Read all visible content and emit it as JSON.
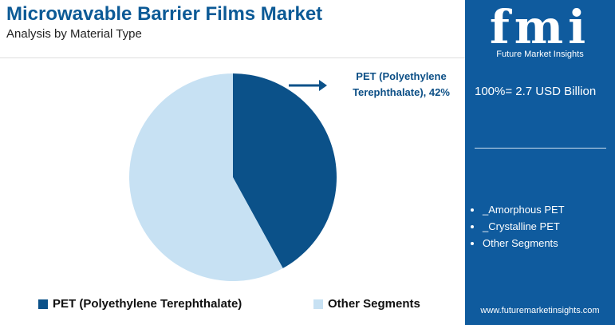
{
  "chart_data": {
    "type": "pie",
    "title": "Microwavable Barrier Films Market",
    "subtitle": "Analysis by Material Type",
    "categories": [
      "PET (Polyethylene Terephthalate)",
      "Other Segments"
    ],
    "values": [
      42,
      58
    ],
    "value_labels": [
      "PET (Polyethylene Terephthalate), 42%",
      null
    ],
    "colors": [
      "#0b5189",
      "#c7e1f3"
    ]
  },
  "panel": {
    "logo": "fmi",
    "brand": "Future Market Insights",
    "total": "100%= 2.7 USD Billion",
    "segments": [
      "_Amorphous PET",
      "_Crystalline PET",
      "Other Segments"
    ],
    "website": "www.futuremarketinsights.com"
  }
}
